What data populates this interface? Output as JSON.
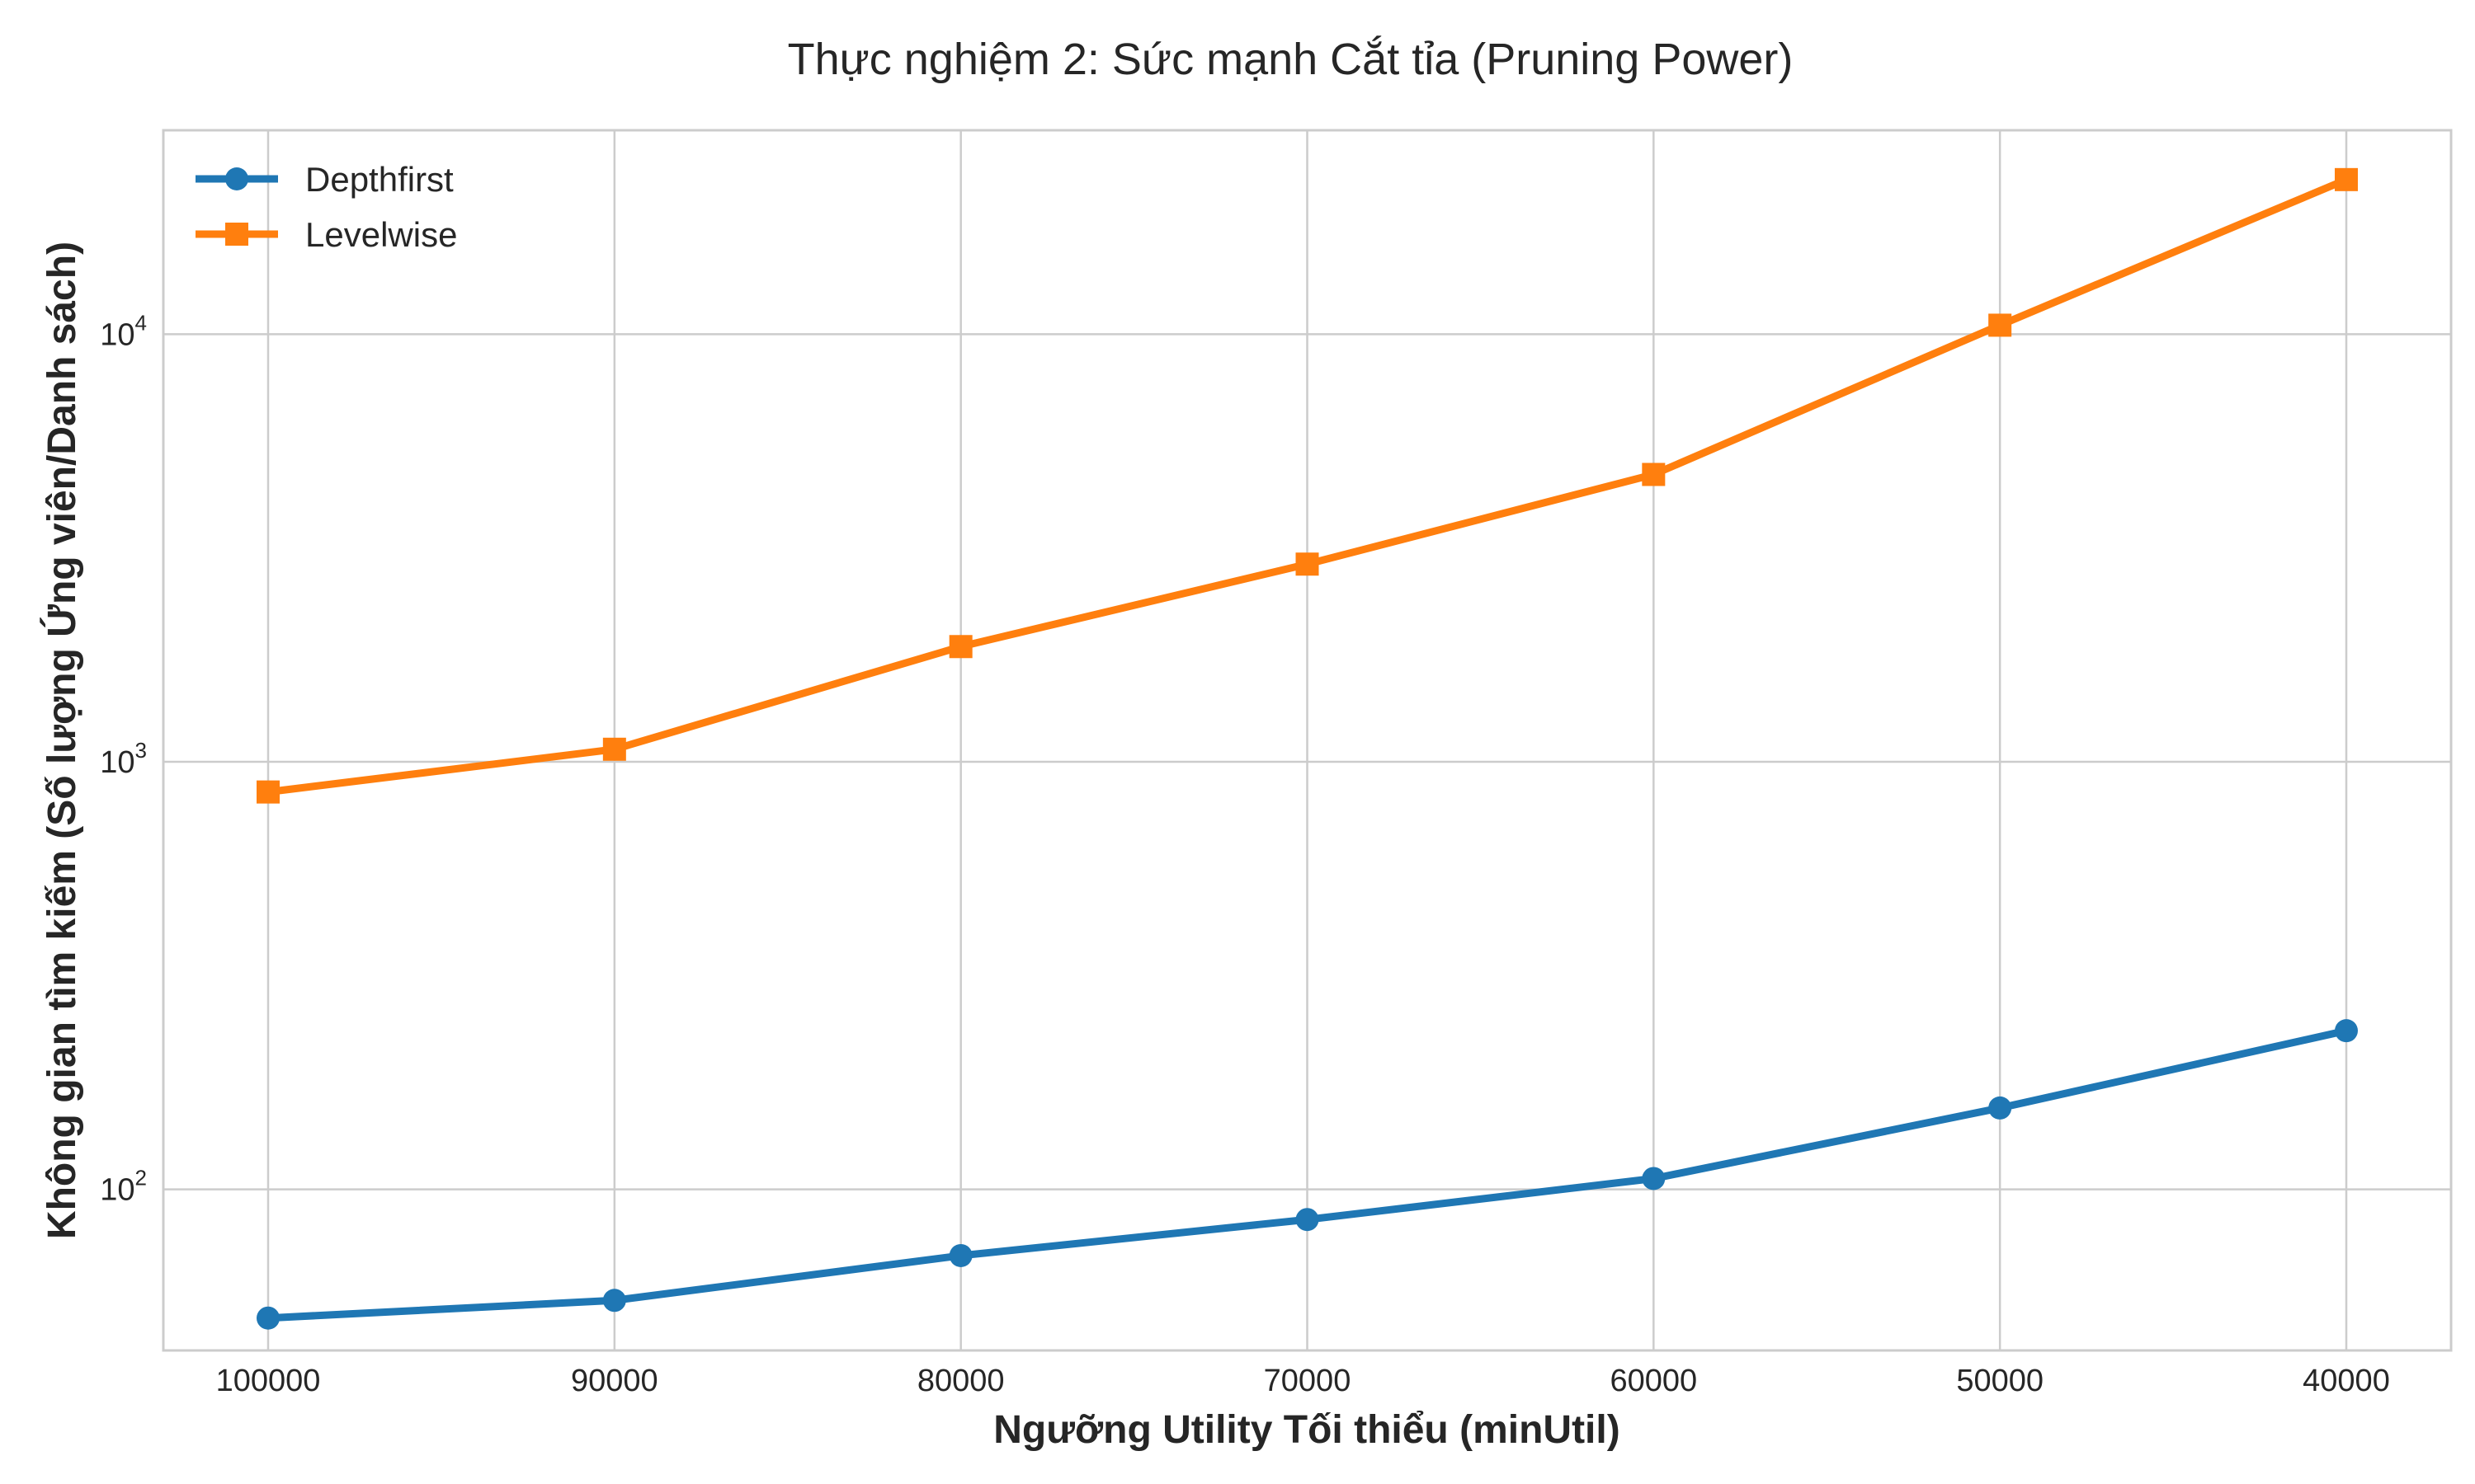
{
  "chart_data": {
    "type": "line",
    "title": "Thực nghiệm 2: Sức mạnh Cắt tỉa (Pruning Power)",
    "xlabel": "Ngưỡng Utility Tối thiểu (minUtil)",
    "ylabel": "Không gian tìm kiếm (Số lượng Ứng viên/Danh sách)",
    "categories": [
      "100000",
      "90000",
      "80000",
      "70000",
      "60000",
      "50000",
      "40000"
    ],
    "y_scale": "log",
    "ylim": [
      42,
      30000
    ],
    "y_ticks": [
      {
        "value": 100,
        "base": "10",
        "exp": "2"
      },
      {
        "value": 1000,
        "base": "10",
        "exp": "3"
      },
      {
        "value": 10000,
        "base": "10",
        "exp": "4"
      }
    ],
    "grid": true,
    "legend_position": "top-left",
    "series": [
      {
        "name": "Depthfirst",
        "color": "#1f77b4",
        "marker": "circle",
        "values": [
          50,
          55,
          70,
          85,
          106,
          155,
          235
        ]
      },
      {
        "name": "Levelwise",
        "color": "#ff7f0e",
        "marker": "square",
        "values": [
          850,
          1070,
          1860,
          2900,
          4700,
          10500,
          23000
        ]
      }
    ]
  }
}
